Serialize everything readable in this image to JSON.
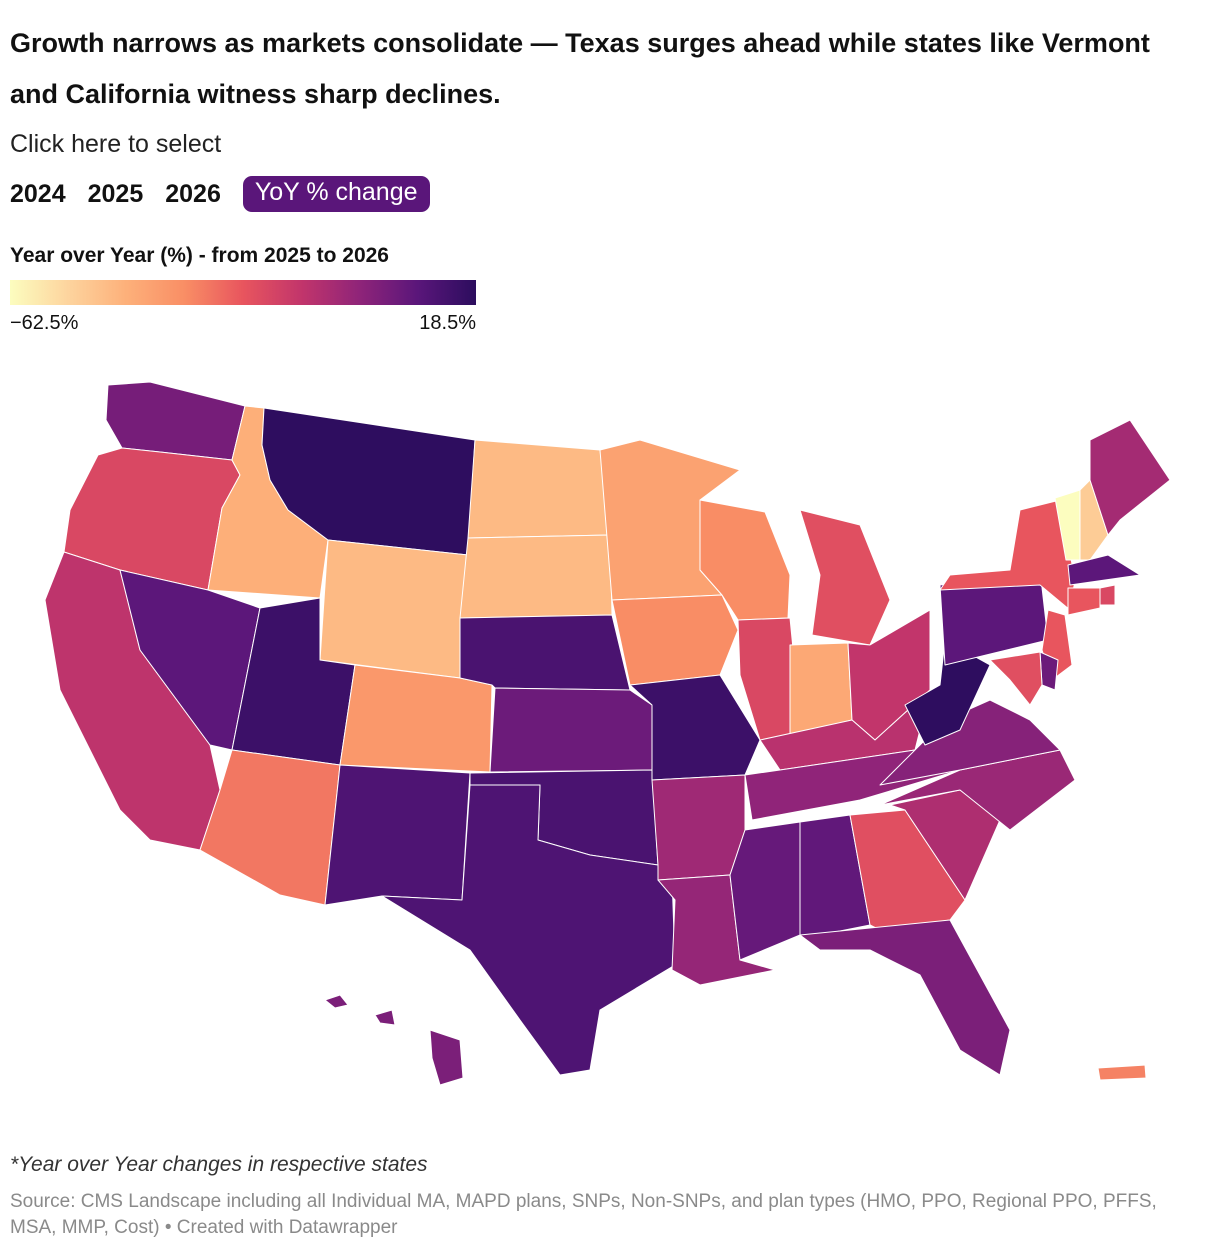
{
  "title": "Growth narrows as markets consolidate — Texas surges ahead while states like Vermont and California witness sharp declines.",
  "selector": {
    "prompt": "Click here to select",
    "options": [
      "2024",
      "2025",
      "2026",
      "YoY % change"
    ],
    "active": "YoY % change"
  },
  "legend": {
    "title": "Year over Year (%) - from 2025 to 2026",
    "min_label": "−62.5%",
    "max_label": "18.5%",
    "colors": [
      "#fcfdbf",
      "#fdd49e",
      "#fdb07a",
      "#f98e65",
      "#e8555e",
      "#c2356b",
      "#8f2479",
      "#5a167a",
      "#2c0d5e"
    ]
  },
  "chart_data": {
    "type": "choropleth",
    "metric": "Year over Year (%) - from 2025 to 2026",
    "domain": [
      -62.5,
      18.5
    ],
    "values": {
      "WA": 3,
      "OR": -18,
      "CA": -11,
      "ID": -42,
      "NV": 8,
      "MT": 18,
      "WY": -45,
      "UT": 15,
      "AZ": -28,
      "CO": -35,
      "NM": 11,
      "ND": -45,
      "SD": -45,
      "NE": 12,
      "KS": 5,
      "OK": 12,
      "TX": 11,
      "MN": -38,
      "IA": -32,
      "MO": 15,
      "AR": -5,
      "LA": -3,
      "WI": -32,
      "IL": -18,
      "MI": -20,
      "IN": -40,
      "OH": -12,
      "KY": -10,
      "TN": -2,
      "MS": 6,
      "AL": 7,
      "GA": -20,
      "FL": 2,
      "SC": -8,
      "NC": -4,
      "VA": 0,
      "WV": 18,
      "PA": 8,
      "NY": -22,
      "VT": -62.5,
      "NH": -50,
      "ME": -6,
      "MA": 8,
      "RI": -18,
      "CT": -22,
      "NJ": -22,
      "DE": 5,
      "MD": -20,
      "HI": 2,
      "PR": -30
    }
  },
  "note": "*Year over Year changes in respective states",
  "source": "Source: CMS Landscape including all Individual MA, MAPD plans, SNPs, Non-SNPs, and plan types (HMO, PPO, Regional PPO, PFFS, MSA, MMP, Cost) • Created with Datawrapper"
}
